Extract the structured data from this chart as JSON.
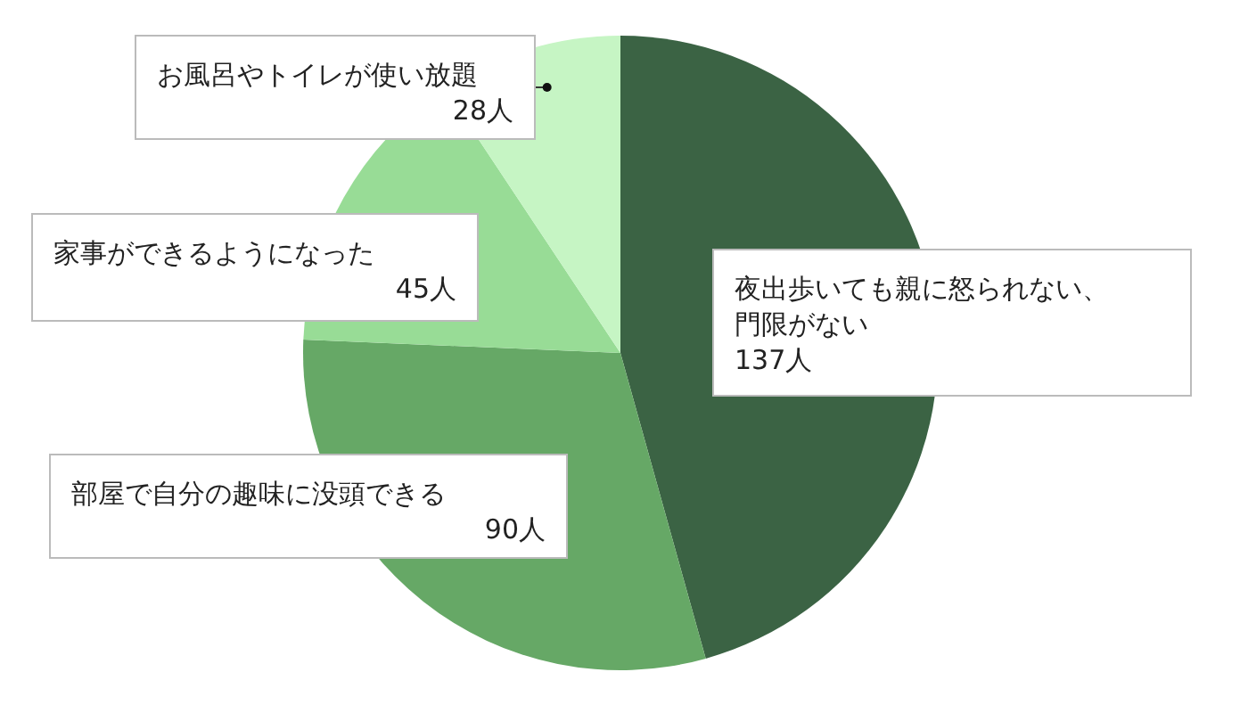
{
  "chart_data": {
    "type": "pie",
    "categories": [
      "夜出歩いても親に怒られない、門限がない",
      "部屋で自分の趣味に没頭できる",
      "家事ができるようになった",
      "お風呂やトイレが使い放題"
    ],
    "values": [
      137,
      90,
      45,
      28
    ],
    "colors": [
      "#3b6344",
      "#66a866",
      "#98dc96",
      "#c6f5c4"
    ],
    "value_labels": [
      "137人",
      "90人",
      "45人",
      "28人"
    ]
  }
}
